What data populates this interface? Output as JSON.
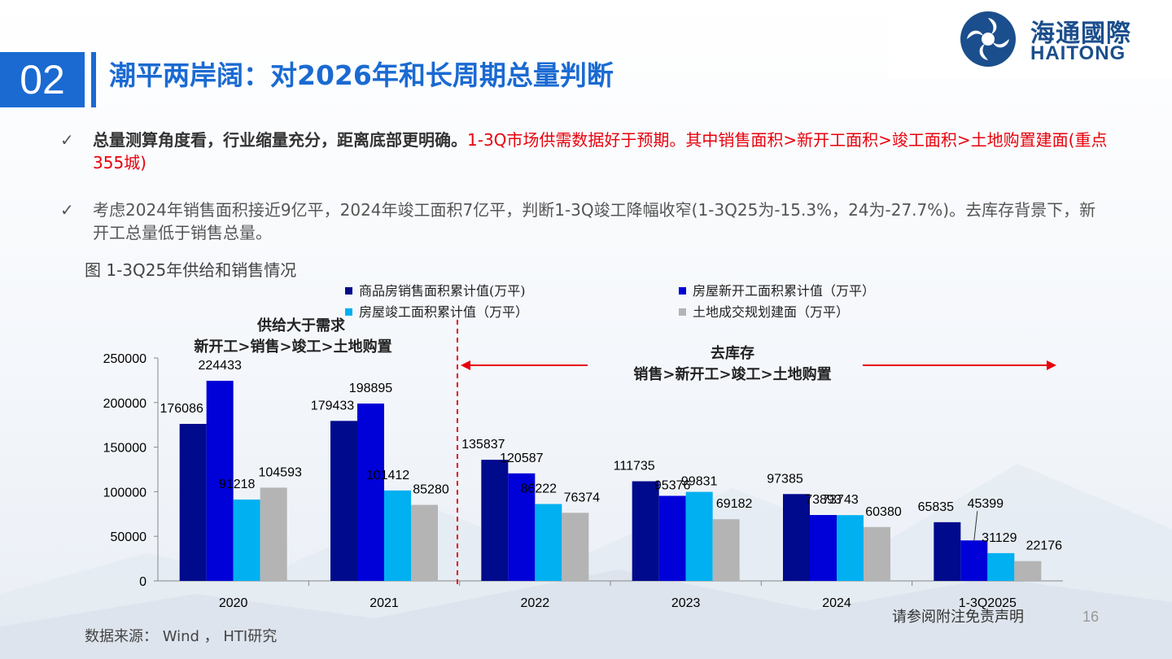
{
  "header": {
    "section_number": "02",
    "title": "潮平两岸阔：对2026年和长周期总量判断",
    "logo_cn": "海通國際",
    "logo_en": "HAITONG"
  },
  "bullets": [
    {
      "check": "✓",
      "bold": "总量测算角度看，行业缩量充分，距离底部更明确。",
      "red": "1-3Q市场供需数据好于预期。其中销售面积>新开工面积>竣工面积>土地购置建面(重点355城)"
    },
    {
      "check": "✓",
      "text": "考虑2024年销售面积接近9亿平，2024年竣工面积7亿平，判断1-3Q竣工降幅收窄(1-3Q25为-15.3%，24为-27.7%)。去库存背景下，新开工总量低于销售总量。"
    }
  ],
  "figure_title": "图 1-3Q25年供给和销售情况",
  "annotations": {
    "left_line1": "供给大于需求",
    "left_line2": "新开工>销售>竣工>土地购置",
    "right_line1": "去库存",
    "right_line2": "销售>新开工>竣工>土地购置"
  },
  "chart_data": {
    "type": "bar",
    "categories": [
      "2020",
      "2021",
      "2022",
      "2023",
      "2024",
      "1-3Q2025"
    ],
    "series": [
      {
        "name": "商品房销售面积累计值(万平)",
        "color": "#000a8c",
        "values": [
          176086,
          179433,
          135837,
          111735,
          97385,
          65835
        ]
      },
      {
        "name": "房屋新开工面积累计值（万平）",
        "color": "#0000d8",
        "values": [
          224433,
          198895,
          120587,
          95376,
          73893,
          45399
        ]
      },
      {
        "name": "房屋竣工面积累计值（万平）",
        "color": "#00b0f0",
        "values": [
          91218,
          101412,
          86222,
          99831,
          73743,
          31129
        ]
      },
      {
        "name": "土地成交规划建面（万平）",
        "color": "#b4b4b4",
        "values": [
          104593,
          85280,
          76374,
          69182,
          60380,
          22176
        ]
      }
    ],
    "yticks": [
      "0",
      "50000",
      "100000",
      "150000",
      "200000",
      "250000"
    ],
    "ylim": [
      0,
      250000
    ],
    "xlabel": "",
    "ylabel": ""
  },
  "footer": {
    "source": "数据来源： Wind ， HTI研究",
    "disclaimer": "请参阅附注免责声明",
    "page": "16"
  }
}
